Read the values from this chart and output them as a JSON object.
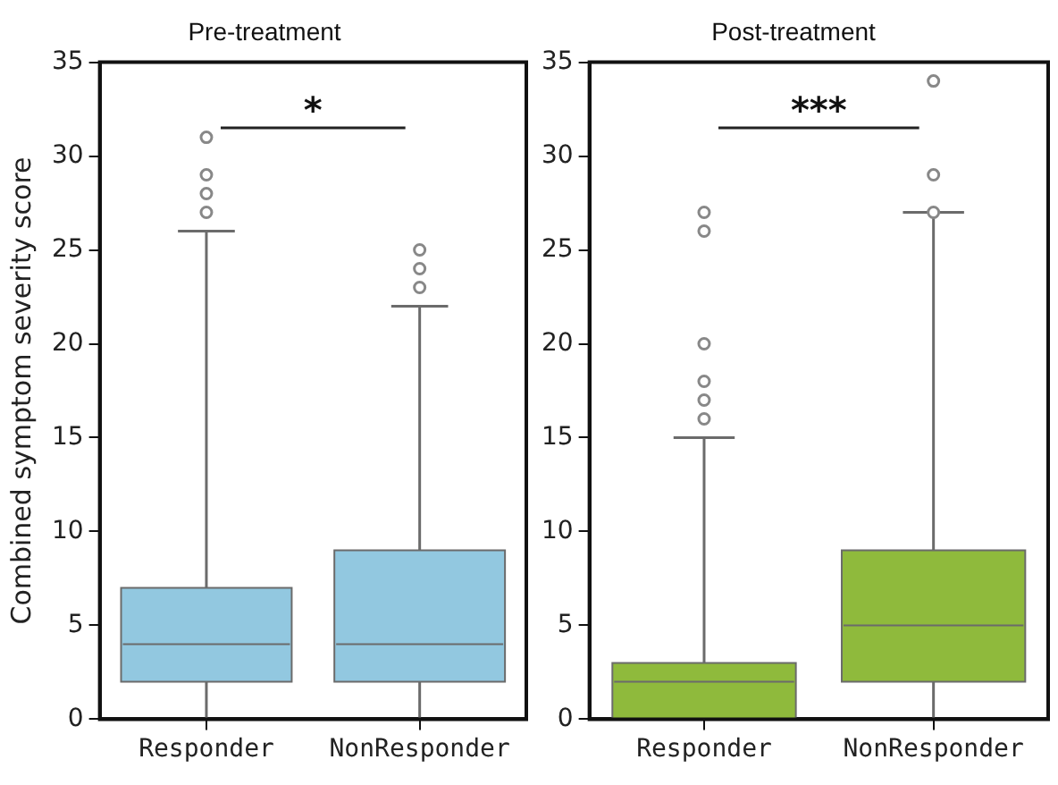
{
  "chart_data": [
    {
      "type": "box",
      "title": "Pre-treatment",
      "ylabel": "Combined symptom severity score",
      "categories": [
        "Responder",
        "NonResponder"
      ],
      "ylim": [
        0,
        35
      ],
      "yticks": [
        0,
        5,
        10,
        15,
        20,
        25,
        30,
        35
      ],
      "annotations": [
        "*"
      ],
      "series": [
        {
          "color": "#92c8e0",
          "boxes": [
            {
              "low": 0,
              "q1": 2,
              "median": 4,
              "q3": 7,
              "high": 26,
              "outliers": [
                27,
                28,
                29,
                31
              ]
            },
            {
              "low": 0,
              "q1": 2,
              "median": 4,
              "q3": 9,
              "high": 22,
              "outliers": [
                23,
                24,
                25
              ]
            }
          ]
        }
      ]
    },
    {
      "type": "box",
      "title": "Post-treatment",
      "categories": [
        "Responder",
        "NonResponder"
      ],
      "ylim": [
        0,
        35
      ],
      "yticks": [
        0,
        5,
        10,
        15,
        20,
        25,
        30,
        35
      ],
      "annotations": [
        "***"
      ],
      "series": [
        {
          "color": "#8fba3c",
          "boxes": [
            {
              "low": 0,
              "q1": 0,
              "median": 2,
              "q3": 3,
              "high": 15,
              "outliers": [
                16,
                17,
                18,
                20,
                26,
                27
              ]
            },
            {
              "low": 0,
              "q1": 2,
              "median": 5,
              "q3": 9,
              "high": 27,
              "outliers": [
                27,
                29,
                34
              ]
            }
          ]
        }
      ]
    }
  ]
}
